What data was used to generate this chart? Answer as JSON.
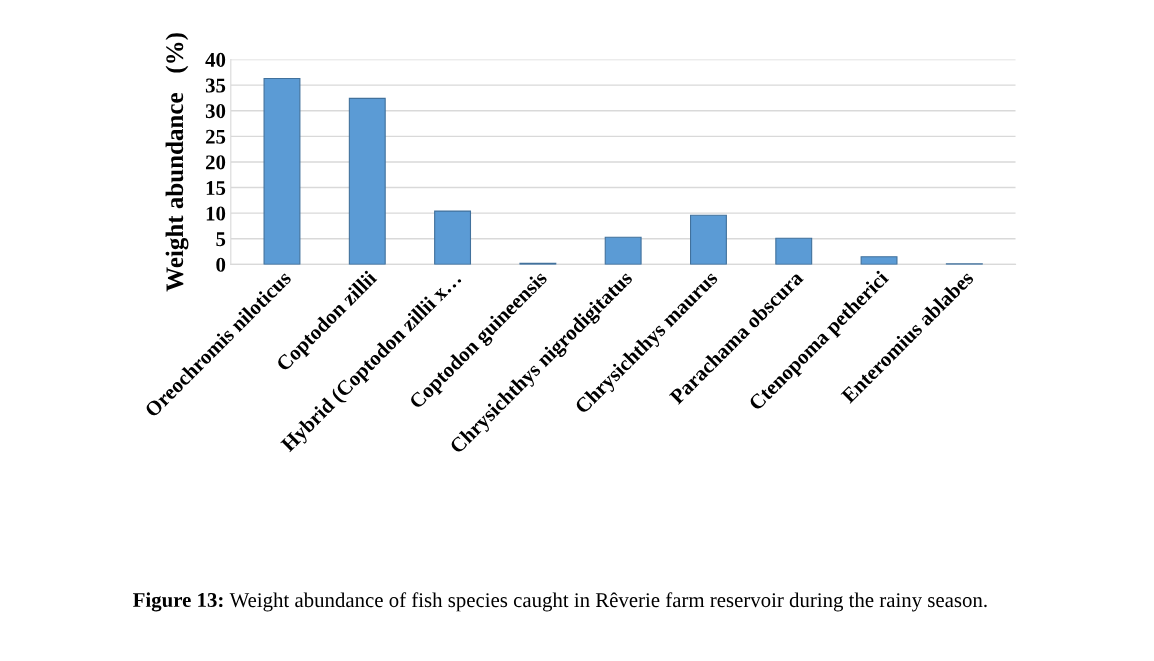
{
  "chart_data": {
    "type": "bar",
    "ylabel": "Weight abundance   (%)",
    "categories": [
      "Oreochromis niloticus",
      "Coptodon zillii",
      "Hybrid (Coptodon zillii x…",
      "Coptodon guineensis",
      "Chrysichthys nigrodigitatus",
      "Chrysichthys maurus",
      "Parachama obscura",
      "Ctenopoma petherici",
      "Enteromius ablabes"
    ],
    "values": [
      36.3,
      32.4,
      10.4,
      0.2,
      5.3,
      9.6,
      5.1,
      1.5,
      0.1
    ],
    "color": "#5b9bd5",
    "ylim": [
      0,
      40
    ],
    "yticks": [
      0,
      5,
      10,
      15,
      20,
      25,
      30,
      35,
      40
    ],
    "grid": "y",
    "legend": false,
    "annotations": [
      "Figure 13:",
      "Weight abundance of fish species caught in Rêverie farm reservoir during the rainy season."
    ]
  }
}
